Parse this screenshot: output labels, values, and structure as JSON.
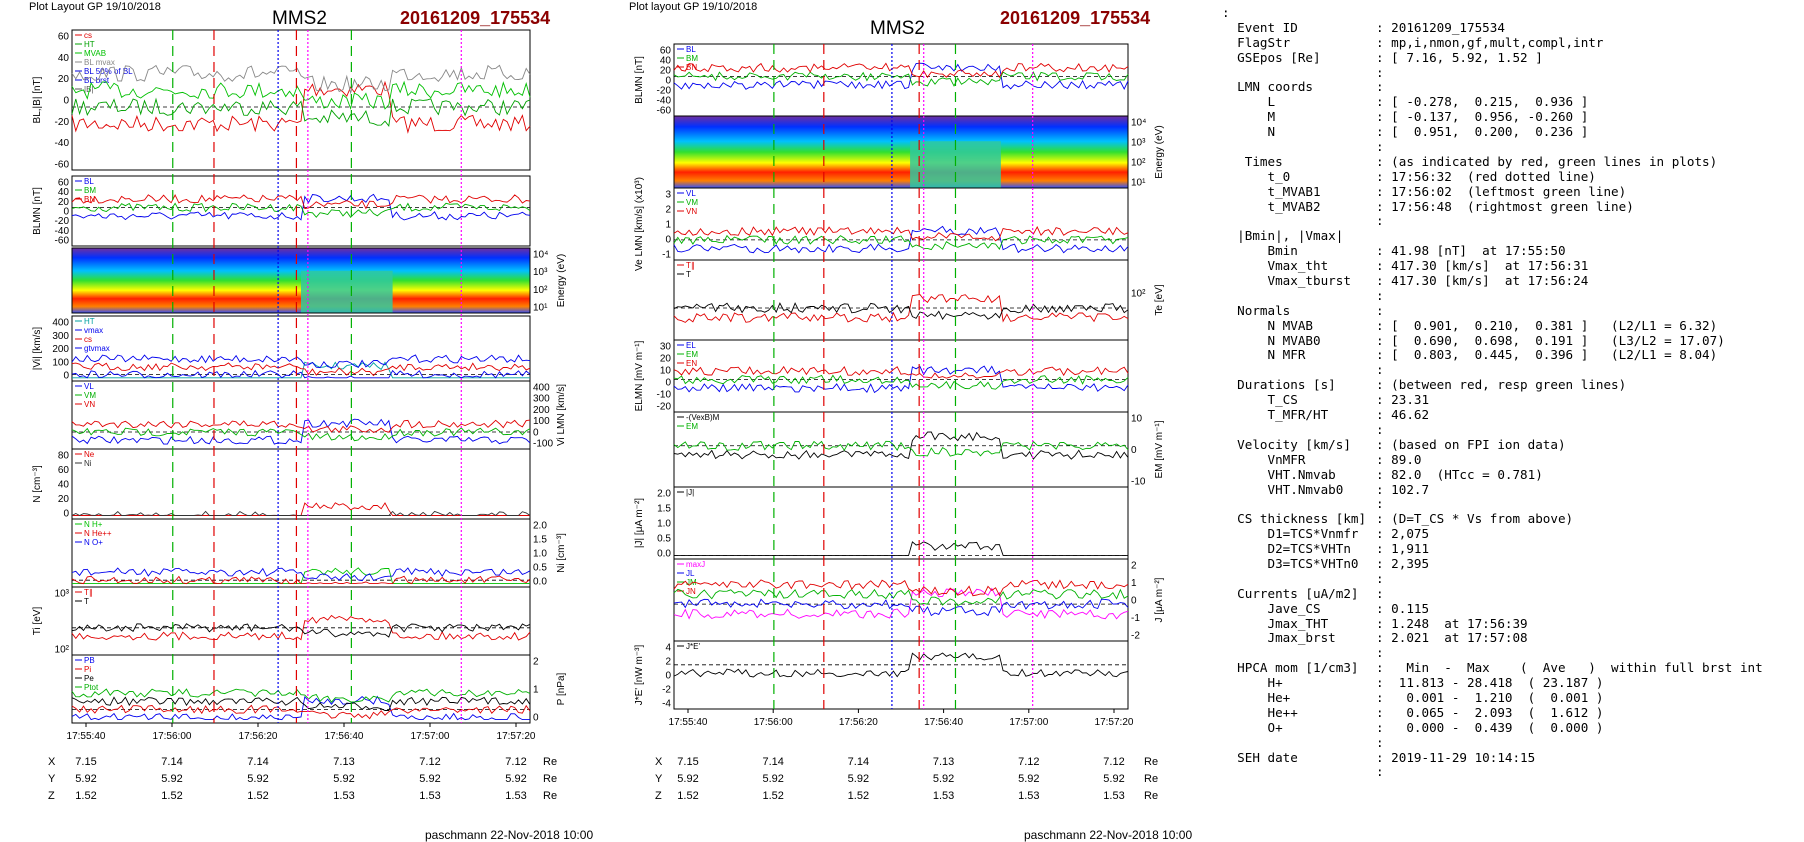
{
  "left": {
    "header": "Plot Layout GP 19/10/2018",
    "spacecraft": "MMS2",
    "event": "20161209_175534",
    "footer": "paschmann 22-Nov-2018 10:00",
    "time_ticks": [
      "17:55:40",
      "17:56:00",
      "17:56:20",
      "17:56:40",
      "17:57:00",
      "17:57:20"
    ],
    "coords": {
      "X": [
        "7.15",
        "7.14",
        "7.14",
        "7.13",
        "7.12",
        "7.12"
      ],
      "Y": [
        "5.92",
        "5.92",
        "5.92",
        "5.92",
        "5.92",
        "5.92"
      ],
      "Z": [
        "1.52",
        "1.52",
        "1.52",
        "1.53",
        "1.53",
        "1.53"
      ],
      "unit": "Re"
    },
    "panels": [
      {
        "ylabel": "BL,|B| [nT]",
        "yticks": [
          "60",
          "40",
          "20",
          "0",
          "-20",
          "-40",
          "-60"
        ],
        "legend": [
          "cs",
          "HT",
          "MVAB",
          "BL mvax",
          "BL 50% of BL",
          "BL brst",
          "|B|"
        ],
        "legend_colors": [
          "#e00000",
          "#00a000",
          "#00c000",
          "#888888",
          "#0000dd",
          "#0000dd",
          "#555555"
        ]
      },
      {
        "ylabel": "BLMN [nT]",
        "yticks": [
          "60",
          "40",
          "20",
          "0",
          "-20",
          "-40",
          "-60"
        ],
        "legend": [
          "BL",
          "BM",
          "BN"
        ],
        "legend_colors": [
          "#0000ee",
          "#00b000",
          "#e00000"
        ]
      },
      {
        "ylabel": "Energy (eV)",
        "yticks": [
          "10⁴",
          "10³",
          "10²",
          "10¹"
        ]
      },
      {
        "ylabel": "|Vi| [km/s]",
        "yticks": [
          "400",
          "300",
          "200",
          "100",
          "0"
        ],
        "legend": [
          "HT",
          "vmax",
          "cs",
          "gtvmax"
        ],
        "legend_colors": [
          "#00a0a0",
          "#0000ee",
          "#e00000",
          "#0000ee"
        ]
      },
      {
        "ylabel": "Vi LMN [km/s]",
        "yticks": [
          "400",
          "300",
          "200",
          "100",
          "0",
          "-100"
        ],
        "legend": [
          "VL",
          "VM",
          "VN"
        ],
        "legend_colors": [
          "#0000ee",
          "#00b000",
          "#e00000"
        ]
      },
      {
        "ylabel": "N [cm⁻³]",
        "yticks": [
          "80",
          "60",
          "40",
          "20",
          "0"
        ],
        "legend": [
          "Ne",
          "Ni"
        ],
        "legend_colors": [
          "#e00000",
          "#333333"
        ]
      },
      {
        "ylabel": "Ni [cm⁻³]",
        "yticks": [
          "2.0",
          "1.5",
          "1.0",
          "0.5",
          "0.0"
        ],
        "legend": [
          "N H+",
          "N He++",
          "N O+"
        ],
        "legend_colors": [
          "#00c000",
          "#e00000",
          "#0000ee"
        ]
      },
      {
        "ylabel": "Ti [eV]",
        "yticks": [
          "10³",
          "10²"
        ],
        "legend": [
          "T∥",
          "T"
        ],
        "legend_colors": [
          "#e00000",
          "#000000"
        ]
      },
      {
        "ylabel": "P [nPa]",
        "yticks": [
          "2",
          "1",
          "0"
        ],
        "legend": [
          "PB",
          "Pi",
          "Pe",
          "Ptot"
        ],
        "legend_colors": [
          "#0000ee",
          "#e00000",
          "#000000",
          "#00b000"
        ]
      }
    ]
  },
  "middle": {
    "header": "Plot layout GP 19/10/2018",
    "spacecraft": "MMS2",
    "event": "20161209_175534",
    "footer": "paschmann 22-Nov-2018 10:00",
    "time_ticks": [
      "17:55:40",
      "17:56:00",
      "17:56:20",
      "17:56:40",
      "17:57:00",
      "17:57:20"
    ],
    "coords": {
      "X": [
        "7.15",
        "7.14",
        "7.14",
        "7.13",
        "7.12",
        "7.12"
      ],
      "Y": [
        "5.92",
        "5.92",
        "5.92",
        "5.92",
        "5.92",
        "5.92"
      ],
      "Z": [
        "1.52",
        "1.52",
        "1.52",
        "1.53",
        "1.53",
        "1.53"
      ],
      "unit": "Re"
    },
    "panels": [
      {
        "ylabel": "BLMN [nT]",
        "yticks": [
          "60",
          "40",
          "20",
          "0",
          "-20",
          "-40",
          "-60"
        ],
        "legend": [
          "BL",
          "BM",
          "BN"
        ],
        "legend_colors": [
          "#0000ee",
          "#00b000",
          "#e00000"
        ]
      },
      {
        "ylabel": "Energy (eV)",
        "yticks": [
          "10⁴",
          "10³",
          "10²",
          "10¹"
        ]
      },
      {
        "ylabel": "Ve LMN [km/s] (x10³)",
        "yticks": [
          "3",
          "2",
          "1",
          "0",
          "-1"
        ],
        "legend": [
          "VL",
          "VM",
          "VN"
        ],
        "legend_colors": [
          "#0000ee",
          "#00b000",
          "#e00000"
        ]
      },
      {
        "ylabel": "Te [eV]",
        "yticks": [
          "10²"
        ],
        "legend": [
          "T∥",
          "T"
        ],
        "legend_colors": [
          "#e00000",
          "#000000"
        ]
      },
      {
        "ylabel": "ELMN [mV m⁻¹]",
        "yticks": [
          "30",
          "20",
          "10",
          "0",
          "-10",
          "-20"
        ],
        "legend": [
          "EL",
          "EM",
          "EN"
        ],
        "legend_colors": [
          "#0000ee",
          "#00b000",
          "#e00000"
        ]
      },
      {
        "ylabel": "EM [mV m⁻¹]",
        "yticks": [
          "10",
          "0",
          "-10"
        ],
        "legend": [
          "-(VexB)M",
          "EM"
        ],
        "legend_colors": [
          "#000000",
          "#00b000"
        ]
      },
      {
        "ylabel": "|J| [μA m⁻²]",
        "yticks": [
          "2.0",
          "1.5",
          "1.0",
          "0.5",
          "0.0"
        ],
        "legend": [
          "|J|"
        ],
        "legend_colors": [
          "#000000"
        ]
      },
      {
        "ylabel": "J [μA m⁻²]",
        "yticks": [
          "2",
          "1",
          "0",
          "-1",
          "-2"
        ],
        "legend": [
          "maxJ",
          "JL",
          "JM",
          "JN"
        ],
        "legend_colors": [
          "#ff00ff",
          "#0000ee",
          "#00b000",
          "#e00000"
        ]
      },
      {
        "ylabel": "J*E' [nW m⁻³]",
        "yticks": [
          "4",
          "2",
          "0",
          "-2",
          "-4"
        ],
        "legend": [
          "J*E'"
        ],
        "legend_colors": [
          "#000000"
        ]
      }
    ]
  },
  "info_colon": ":",
  "info_rows": [
    [
      "",
      ""
    ],
    [
      "Event ID",
      ": 20161209_175534"
    ],
    [
      "FlagStr",
      ": mp,i,nmon,gf,mult,compl,intr"
    ],
    [
      "GSEpos [Re]",
      ": [ 7.16, 5.92, 1.52 ]"
    ],
    [
      "",
      ":"
    ],
    [
      "LMN coords",
      ":"
    ],
    [
      "    L",
      ": [ -0.278,  0.215,  0.936 ]"
    ],
    [
      "    M",
      ": [ -0.137,  0.956, -0.260 ]"
    ],
    [
      "    N",
      ": [  0.951,  0.200,  0.236 ]"
    ],
    [
      "",
      ":"
    ],
    [
      " Times",
      ": (as indicated by red, green lines in plots)"
    ],
    [
      "    t_0",
      ": 17:56:32  (red dotted line)"
    ],
    [
      "    t_MVAB1",
      ": 17:56:02  (leftmost green line)"
    ],
    [
      "    t_MVAB2",
      ": 17:56:48  (rightmost green line)"
    ],
    [
      "",
      ":"
    ],
    [
      "|Bmin|, |Vmax|",
      ""
    ],
    [
      "    Bmin",
      ": 41.98 [nT]  at 17:55:50"
    ],
    [
      "    Vmax_tht",
      ": 417.30 [km/s]  at 17:56:31"
    ],
    [
      "    Vmax_tburst",
      ": 417.30 [km/s]  at 17:56:24"
    ],
    [
      "",
      ":"
    ],
    [
      "Normals",
      ":"
    ],
    [
      "    N MVAB",
      ": [  0.901,  0.210,  0.381 ]   (L2/L1 = 6.32)"
    ],
    [
      "    N MVAB0",
      ": [  0.690,  0.698,  0.191 ]   (L3/L2 = 17.07)"
    ],
    [
      "    N MFR",
      ": [  0.803,  0.445,  0.396 ]   (L2/L1 = 8.04)"
    ],
    [
      "",
      ":"
    ],
    [
      "Durations [s]",
      ": (between red, resp green lines)"
    ],
    [
      "    T_CS",
      ": 23.31"
    ],
    [
      "    T_MFR/HT",
      ": 46.62"
    ],
    [
      "",
      ":"
    ],
    [
      "Velocity [km/s]",
      ": (based on FPI ion data)"
    ],
    [
      "    VnMFR",
      ": 89.0"
    ],
    [
      "    VHT.Nmvab",
      ": 82.0  (HTcc = 0.781)"
    ],
    [
      "    VHT.Nmvab0",
      ": 102.7"
    ],
    [
      "",
      ":"
    ],
    [
      "CS thickness [km]",
      ": (D=T_CS * Vs from above)"
    ],
    [
      "    D1=TCS*Vnmfr",
      ": 2,075"
    ],
    [
      "    D2=TCS*VHTn",
      ": 1,911"
    ],
    [
      "    D3=TCS*VHTn0",
      ": 2,395"
    ],
    [
      "",
      ":"
    ],
    [
      "Currents [uA/m2]",
      ":"
    ],
    [
      "    Jave_CS",
      ": 0.115"
    ],
    [
      "    Jmax_THT",
      ": 1.248  at 17:56:39"
    ],
    [
      "    Jmax_brst",
      ": 2.021  at 17:57:08"
    ],
    [
      "",
      ":"
    ],
    [
      "HPCA mom [1/cm3]",
      ":   Min  -  Max    (  Ave   )  within full brst int"
    ],
    [
      "    H+",
      ":  11.813 - 28.418  ( 23.187 )"
    ],
    [
      "    He+",
      ":   0.001 -  1.210  (  0.001 )"
    ],
    [
      "    He++",
      ":   0.065 -  2.093  (  1.612 )"
    ],
    [
      "    O+",
      ":   0.000 -  0.439  (  0.000 )"
    ],
    [
      "",
      ":"
    ],
    [
      "SEH date",
      ": 2019-11-29 10:14:15"
    ],
    [
      "",
      ":"
    ]
  ]
}
